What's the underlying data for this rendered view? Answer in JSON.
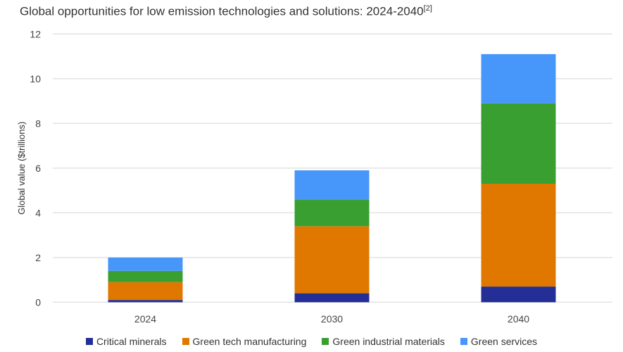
{
  "chart_data": {
    "type": "bar",
    "stacked": true,
    "title": "Global opportunities for low emission technologies and solutions: 2024-2040",
    "title_superscript": "[2]",
    "xlabel": "",
    "ylabel": "Global value ($trillions)",
    "ylim": [
      0,
      12
    ],
    "yticks": [
      0,
      2,
      4,
      6,
      8,
      10,
      12
    ],
    "grid": true,
    "legend_position": "bottom",
    "categories": [
      "2024",
      "2030",
      "2040"
    ],
    "series": [
      {
        "name": "Critical minerals",
        "color": "#232f96",
        "values": [
          0.1,
          0.4,
          0.7
        ]
      },
      {
        "name": "Green tech manufacturing",
        "color": "#e07800",
        "values": [
          0.8,
          3.0,
          4.6
        ]
      },
      {
        "name": "Green industrial materials",
        "color": "#3a9f31",
        "values": [
          0.5,
          1.2,
          3.6
        ]
      },
      {
        "name": "Green services",
        "color": "#4796fa",
        "values": [
          0.6,
          1.3,
          2.2
        ]
      }
    ]
  }
}
